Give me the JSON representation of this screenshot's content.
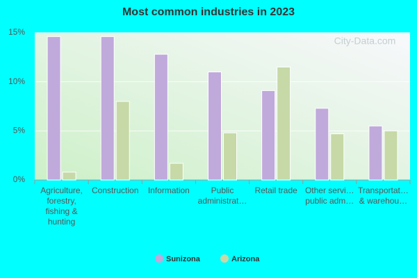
{
  "chart_data": {
    "type": "bar",
    "title": "Most common industries in 2023",
    "watermark": "City-Data.com",
    "categories": [
      "Agriculture, forestry, fishing & hunting",
      "Construction",
      "Information",
      "Public administrat…",
      "Retail trade",
      "Other servi… public adm…",
      "Transportat… & warehou…"
    ],
    "series": [
      {
        "name": "Sunizona",
        "color": "#c0a9db",
        "values": [
          14.6,
          14.6,
          12.8,
          11.0,
          9.1,
          7.3,
          5.5
        ]
      },
      {
        "name": "Arizona",
        "color": "#c6d9a7",
        "values": [
          0.8,
          8.0,
          1.7,
          4.8,
          11.5,
          4.7,
          5.0
        ]
      }
    ],
    "ylim": [
      0,
      15
    ],
    "yticks": [
      {
        "value": 0,
        "label": "0%"
      },
      {
        "value": 5,
        "label": "5%"
      },
      {
        "value": 10,
        "label": "10%"
      },
      {
        "value": 15,
        "label": "15%"
      }
    ],
    "grid": true
  }
}
